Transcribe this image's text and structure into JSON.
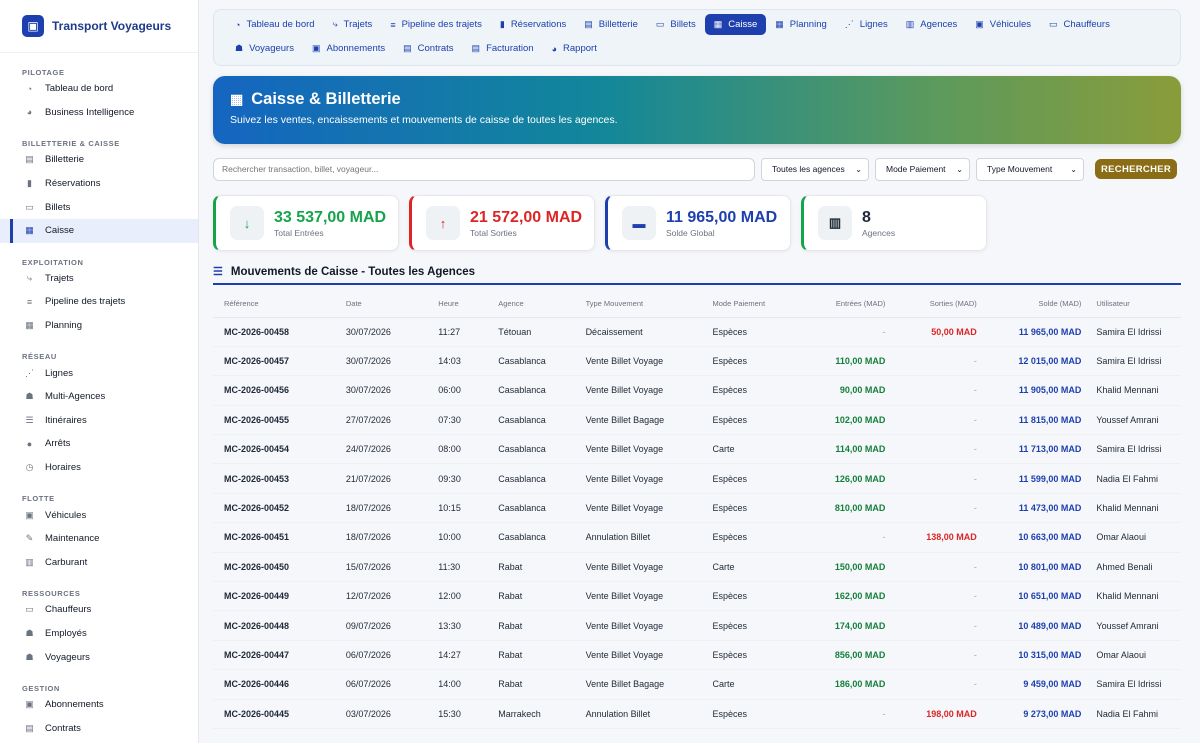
{
  "brand": {
    "name": "Transport Voyageurs"
  },
  "sidebar": {
    "sections": [
      {
        "title": "PILOTAGE",
        "items": [
          {
            "label": "Tableau de bord",
            "icon": "gauge-icon",
            "glyph": "◔"
          },
          {
            "label": "Business Intelligence",
            "icon": "chart-pie-icon",
            "glyph": "◕"
          }
        ]
      },
      {
        "title": "BILLETTERIE & CAISSE",
        "items": [
          {
            "label": "Billetterie",
            "icon": "ticket-icon",
            "glyph": "▤"
          },
          {
            "label": "Réservations",
            "icon": "bookmark-icon",
            "glyph": "▮"
          },
          {
            "label": "Billets",
            "icon": "ticket-alt-icon",
            "glyph": "▭"
          },
          {
            "label": "Caisse",
            "icon": "cash-register-icon",
            "glyph": "▦",
            "active": true
          }
        ]
      },
      {
        "title": "EXPLOITATION",
        "items": [
          {
            "label": "Trajets",
            "icon": "route-icon",
            "glyph": "⤷"
          },
          {
            "label": "Pipeline des trajets",
            "icon": "bars-icon",
            "glyph": "≡"
          },
          {
            "label": "Planning",
            "icon": "calendar-icon",
            "glyph": "▦"
          }
        ]
      },
      {
        "title": "RÉSEAU",
        "items": [
          {
            "label": "Lignes",
            "icon": "network-icon",
            "glyph": "⋰"
          },
          {
            "label": "Multi-Agences",
            "icon": "user-group-icon",
            "glyph": "☗"
          },
          {
            "label": "Itinéraires",
            "icon": "signs-icon",
            "glyph": "☰"
          },
          {
            "label": "Arrêts",
            "icon": "location-pin-icon",
            "glyph": "●"
          },
          {
            "label": "Horaires",
            "icon": "clock-icon",
            "glyph": "◷"
          }
        ]
      },
      {
        "title": "FLOTTE",
        "items": [
          {
            "label": "Véhicules",
            "icon": "bus-icon",
            "glyph": "▣"
          },
          {
            "label": "Maintenance",
            "icon": "wrench-icon",
            "glyph": "✎"
          },
          {
            "label": "Carburant",
            "icon": "fuel-icon",
            "glyph": "▥"
          }
        ]
      },
      {
        "title": "RESSOURCES",
        "items": [
          {
            "label": "Chauffeurs",
            "icon": "id-card-icon",
            "glyph": "▭"
          },
          {
            "label": "Employés",
            "icon": "user-tie-icon",
            "glyph": "☗"
          },
          {
            "label": "Voyageurs",
            "icon": "user-icon",
            "glyph": "☗"
          }
        ]
      },
      {
        "title": "GESTION",
        "items": [
          {
            "label": "Abonnements",
            "icon": "id-badge-icon",
            "glyph": "▣"
          },
          {
            "label": "Contrats",
            "icon": "file-contract-icon",
            "glyph": "▤"
          }
        ]
      }
    ]
  },
  "tabs": [
    {
      "label": "Tableau de bord",
      "icon": "gauge-icon",
      "glyph": "◔"
    },
    {
      "label": "Trajets",
      "icon": "route-icon",
      "glyph": "⤷"
    },
    {
      "label": "Pipeline des trajets",
      "icon": "bars-icon",
      "glyph": "≡"
    },
    {
      "label": "Réservations",
      "icon": "bookmark-icon",
      "glyph": "▮"
    },
    {
      "label": "Billetterie",
      "icon": "ticket-icon",
      "glyph": "▤"
    },
    {
      "label": "Billets",
      "icon": "ticket-alt-icon",
      "glyph": "▭"
    },
    {
      "label": "Caisse",
      "icon": "cash-register-icon",
      "glyph": "▦",
      "active": true
    },
    {
      "label": "Planning",
      "icon": "calendar-icon",
      "glyph": "▦"
    },
    {
      "label": "Lignes",
      "icon": "network-icon",
      "glyph": "⋰"
    },
    {
      "label": "Agences",
      "icon": "building-icon",
      "glyph": "▥"
    },
    {
      "label": "Véhicules",
      "icon": "bus-icon",
      "glyph": "▣"
    },
    {
      "label": "Chauffeurs",
      "icon": "id-card-icon",
      "glyph": "▭"
    },
    {
      "label": "Voyageurs",
      "icon": "user-icon",
      "glyph": "☗"
    },
    {
      "label": "Abonnements",
      "icon": "id-badge-icon",
      "glyph": "▣"
    },
    {
      "label": "Contrats",
      "icon": "file-contract-icon",
      "glyph": "▤"
    },
    {
      "label": "Facturation",
      "icon": "invoice-icon",
      "glyph": "▤"
    },
    {
      "label": "Rapport",
      "icon": "chart-pie-icon",
      "glyph": "◕"
    }
  ],
  "hero": {
    "title": "Caisse & Billetterie",
    "subtitle": "Suivez les ventes, encaissements et mouvements de caisse de toutes les agences."
  },
  "filters": {
    "search_placeholder": "Rechercher transaction, billet, voyageur...",
    "agency": "Toutes les agences",
    "payment": "Mode Paiement",
    "movement": "Type Mouvement",
    "search_button": "RECHERCHER"
  },
  "stats": [
    {
      "value": "33 537,00 MAD",
      "label": "Total Entrées",
      "icon": "arrow-down-icon",
      "glyph": "↓",
      "color": "#16a34a",
      "border": "#16a34a"
    },
    {
      "value": "21 572,00 MAD",
      "label": "Total Sorties",
      "icon": "arrow-up-icon",
      "glyph": "↑",
      "color": "#dc2626",
      "border": "#dc2626"
    },
    {
      "value": "11 965,00 MAD",
      "label": "Solde Global",
      "icon": "wallet-icon",
      "glyph": "▬",
      "color": "#1e40af",
      "border": "#1e40af"
    },
    {
      "value": "8",
      "label": "Agences",
      "icon": "building-icon",
      "glyph": "▥",
      "color": "#1f2937",
      "border": "#16a34a"
    }
  ],
  "section": {
    "title": "Mouvements de Caisse - Toutes les Agences"
  },
  "table": {
    "headers": [
      "Référence",
      "Date",
      "Heure",
      "Agence",
      "Type Mouvement",
      "Mode Paiement",
      "Entrées (MAD)",
      "Sorties (MAD)",
      "Solde (MAD)",
      "Utilisateur"
    ],
    "rows": [
      [
        "MC-2026-00458",
        "30/07/2026",
        "11:27",
        "Tétouan",
        "Décaissement",
        "Espèces",
        "-",
        "50,00 MAD",
        "11 965,00 MAD",
        "Samira El Idrissi"
      ],
      [
        "MC-2026-00457",
        "30/07/2026",
        "14:03",
        "Casablanca",
        "Vente Billet Voyage",
        "Espèces",
        "110,00 MAD",
        "-",
        "12 015,00 MAD",
        "Samira El Idrissi"
      ],
      [
        "MC-2026-00456",
        "30/07/2026",
        "06:00",
        "Casablanca",
        "Vente Billet Voyage",
        "Espèces",
        "90,00 MAD",
        "-",
        "11 905,00 MAD",
        "Khalid Mennani"
      ],
      [
        "MC-2026-00455",
        "27/07/2026",
        "07:30",
        "Casablanca",
        "Vente Billet Bagage",
        "Espèces",
        "102,00 MAD",
        "-",
        "11 815,00 MAD",
        "Youssef Amrani"
      ],
      [
        "MC-2026-00454",
        "24/07/2026",
        "08:00",
        "Casablanca",
        "Vente Billet Voyage",
        "Carte",
        "114,00 MAD",
        "-",
        "11 713,00 MAD",
        "Samira El Idrissi"
      ],
      [
        "MC-2026-00453",
        "21/07/2026",
        "09:30",
        "Casablanca",
        "Vente Billet Voyage",
        "Espèces",
        "126,00 MAD",
        "-",
        "11 599,00 MAD",
        "Nadia El Fahmi"
      ],
      [
        "MC-2026-00452",
        "18/07/2026",
        "10:15",
        "Casablanca",
        "Vente Billet Voyage",
        "Espèces",
        "810,00 MAD",
        "-",
        "11 473,00 MAD",
        "Khalid Mennani"
      ],
      [
        "MC-2026-00451",
        "18/07/2026",
        "10:00",
        "Casablanca",
        "Annulation Billet",
        "Espèces",
        "-",
        "138,00 MAD",
        "10 663,00 MAD",
        "Omar Alaoui"
      ],
      [
        "MC-2026-00450",
        "15/07/2026",
        "11:30",
        "Rabat",
        "Vente Billet Voyage",
        "Carte",
        "150,00 MAD",
        "-",
        "10 801,00 MAD",
        "Ahmed Benali"
      ],
      [
        "MC-2026-00449",
        "12/07/2026",
        "12:00",
        "Rabat",
        "Vente Billet Voyage",
        "Espèces",
        "162,00 MAD",
        "-",
        "10 651,00 MAD",
        "Khalid Mennani"
      ],
      [
        "MC-2026-00448",
        "09/07/2026",
        "13:30",
        "Rabat",
        "Vente Billet Voyage",
        "Espèces",
        "174,00 MAD",
        "-",
        "10 489,00 MAD",
        "Youssef Amrani"
      ],
      [
        "MC-2026-00447",
        "06/07/2026",
        "14:27",
        "Rabat",
        "Vente Billet Voyage",
        "Espèces",
        "856,00 MAD",
        "-",
        "10 315,00 MAD",
        "Omar Alaoui"
      ],
      [
        "MC-2026-00446",
        "06/07/2026",
        "14:00",
        "Rabat",
        "Vente Billet Bagage",
        "Carte",
        "186,00 MAD",
        "-",
        "9 459,00 MAD",
        "Samira El Idrissi"
      ],
      [
        "MC-2026-00445",
        "03/07/2026",
        "15:30",
        "Marrakech",
        "Annulation Billet",
        "Espèces",
        "-",
        "198,00 MAD",
        "9 273,00 MAD",
        "Nadia El Fahmi"
      ]
    ]
  }
}
